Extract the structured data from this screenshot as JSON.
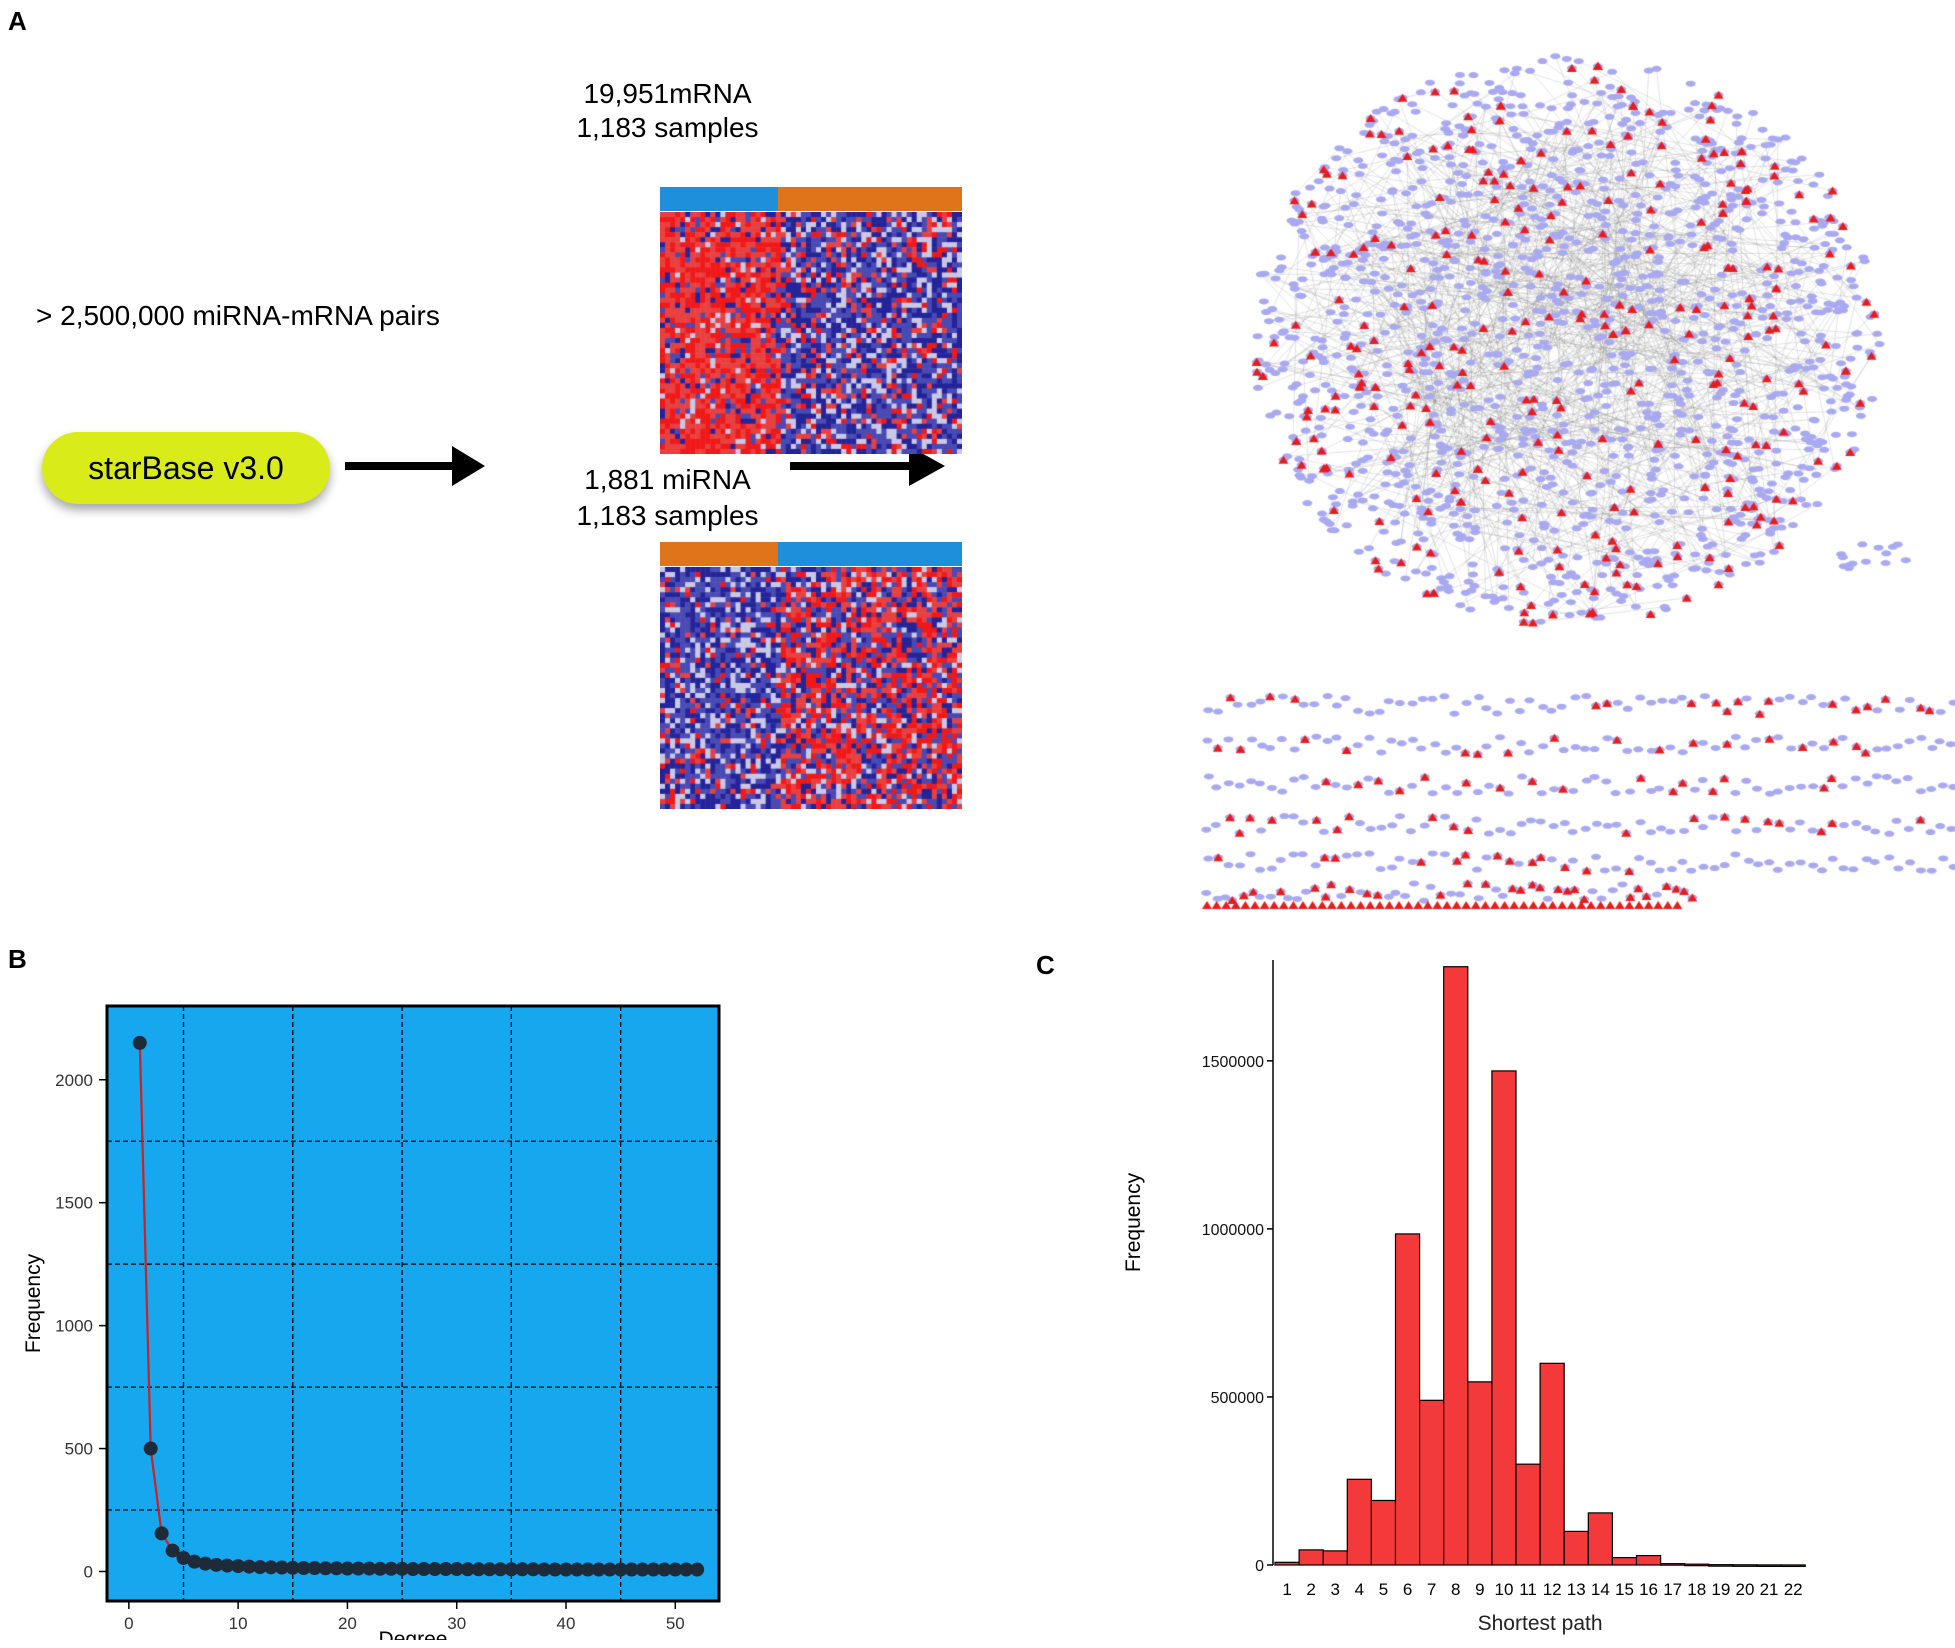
{
  "panel_a": {
    "label": "A",
    "pairs_text": "> 2,500,000 miRNA-mRNA pairs",
    "database": "starBase v3.0",
    "mrna": {
      "line1": "19,951mRNA",
      "line2": "1,183 samples"
    },
    "mirna": {
      "line1": "1,881 miRNA",
      "line2": "1,183 samples"
    },
    "colors": {
      "blue_group": "#1e90db",
      "orange_group": "#e0741a",
      "node": "#a9a9f0",
      "hub": "#e81c1c"
    }
  },
  "chart_data": [
    {
      "panel": "B",
      "type": "line",
      "xlabel": "Degree",
      "ylabel": "Frequency",
      "xlim": [
        -2,
        54
      ],
      "ylim": [
        -120,
        2300
      ],
      "xticks": [
        0,
        10,
        20,
        30,
        40,
        50
      ],
      "yticks": [
        0,
        500,
        1000,
        1500,
        2000
      ],
      "grid_x": [
        5,
        15,
        25,
        35,
        45
      ],
      "grid_y": [
        250,
        750,
        1250,
        1750
      ],
      "x": [
        1,
        2,
        3,
        4,
        5,
        6,
        7,
        8,
        9,
        10,
        11,
        12,
        13,
        14,
        15,
        16,
        17,
        18,
        19,
        20,
        21,
        22,
        23,
        24,
        25,
        26,
        27,
        28,
        29,
        30,
        31,
        32,
        33,
        34,
        35,
        36,
        37,
        38,
        39,
        40,
        41,
        42,
        43,
        44,
        45,
        46,
        47,
        48,
        49,
        50,
        51,
        52
      ],
      "values": [
        2150,
        500,
        155,
        85,
        55,
        40,
        32,
        27,
        24,
        22,
        20,
        18,
        17,
        16,
        15,
        14,
        14,
        13,
        13,
        12,
        12,
        12,
        11,
        11,
        11,
        10,
        10,
        10,
        10,
        10,
        9,
        9,
        9,
        9,
        9,
        9,
        9,
        8,
        8,
        8,
        8,
        8,
        8,
        8,
        8,
        8,
        8,
        8,
        8,
        8,
        8,
        8
      ],
      "colors": {
        "background": "#16a7ef",
        "line": "#d21f1f",
        "marker": "#1c2a3a"
      }
    },
    {
      "panel": "C",
      "type": "bar",
      "xlabel": "Shortest path",
      "ylabel": "Frequency",
      "ylim": [
        0,
        1800000
      ],
      "yticks": [
        0,
        500000,
        1000000,
        1500000
      ],
      "ytick_labels": [
        "0",
        "500000",
        "1000000",
        "1500000"
      ],
      "categories": [
        "1",
        "2",
        "3",
        "4",
        "5",
        "6",
        "7",
        "8",
        "9",
        "10",
        "11",
        "12",
        "13",
        "14",
        "15",
        "16",
        "17",
        "18",
        "19",
        "20",
        "21",
        "22"
      ],
      "values": [
        8000,
        45000,
        42000,
        255000,
        192000,
        985000,
        490000,
        1780000,
        545000,
        1470000,
        300000,
        600000,
        100000,
        155000,
        22000,
        28000,
        4000,
        2500,
        1000,
        600,
        300,
        200
      ],
      "colors": {
        "bar": "#f4393b"
      }
    }
  ],
  "panel_b_label": "B",
  "panel_c_label": "C"
}
